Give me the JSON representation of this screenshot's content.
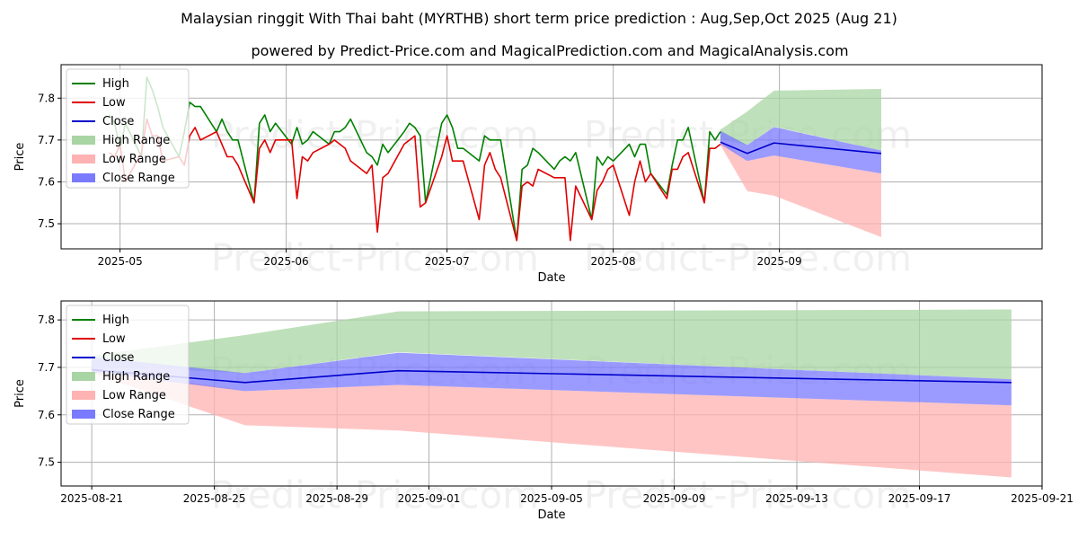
{
  "title": "Malaysian ringgit With Thai baht (MYRTHB) short term price prediction : Aug,Sep,Oct 2025 (Aug 21)",
  "subtitle": "powered by Predict-Price.com and MagicalPrediction.com and MagicalAnalysis.com",
  "watermark": "Predict-Price.com",
  "colors": {
    "high": "#008000",
    "low": "#e00000",
    "close": "#0000cc",
    "high_range": "#a8d5a3",
    "low_range": "#ffb2b2",
    "close_range": "#7a7aff"
  },
  "chart_data": [
    {
      "type": "line",
      "xlabel": "Date",
      "ylabel": "Price",
      "xlim": [
        "2025-04-20",
        "2025-10-20"
      ],
      "ylim": [
        7.44,
        7.88
      ],
      "yticks": [
        7.5,
        7.6,
        7.7,
        7.8
      ],
      "xticks": [
        {
          "date": "2025-05-01",
          "label": "2025-05"
        },
        {
          "date": "2025-06-01",
          "label": "2025-06"
        },
        {
          "date": "2025-07-01",
          "label": "2025-07"
        },
        {
          "date": "2025-08-01",
          "label": "2025-08"
        },
        {
          "date": "2025-09-01",
          "label": "2025-09"
        }
      ],
      "legend": [
        "High",
        "Low",
        "Close",
        "High Range",
        "Low Range",
        "Close Range"
      ],
      "legend_position": "top-left",
      "high": {
        "dates": [
          "2025-04-29",
          "2025-04-30",
          "2025-05-01",
          "2025-05-02",
          "2025-05-05",
          "2025-05-06",
          "2025-05-07",
          "2025-05-08",
          "2025-05-09",
          "2025-05-12",
          "2025-05-13",
          "2025-05-14",
          "2025-05-15",
          "2025-05-16",
          "2025-05-19",
          "2025-05-20",
          "2025-05-21",
          "2025-05-22",
          "2025-05-23",
          "2025-05-26",
          "2025-05-27",
          "2025-05-28",
          "2025-05-29",
          "2025-05-30",
          "2025-06-02",
          "2025-06-03",
          "2025-06-04",
          "2025-06-05",
          "2025-06-06",
          "2025-06-09",
          "2025-06-10",
          "2025-06-11",
          "2025-06-12",
          "2025-06-13",
          "2025-06-16",
          "2025-06-17",
          "2025-06-18",
          "2025-06-19",
          "2025-06-20",
          "2025-06-23",
          "2025-06-24",
          "2025-06-25",
          "2025-06-26",
          "2025-06-27",
          "2025-06-30",
          "2025-07-01",
          "2025-07-02",
          "2025-07-03",
          "2025-07-04",
          "2025-07-07",
          "2025-07-08",
          "2025-07-09",
          "2025-07-10",
          "2025-07-11",
          "2025-07-14",
          "2025-07-15",
          "2025-07-16",
          "2025-07-17",
          "2025-07-18",
          "2025-07-21",
          "2025-07-22",
          "2025-07-23",
          "2025-07-24",
          "2025-07-25",
          "2025-07-28",
          "2025-07-29",
          "2025-07-30",
          "2025-07-31",
          "2025-08-01",
          "2025-08-04",
          "2025-08-05",
          "2025-08-06",
          "2025-08-07",
          "2025-08-08",
          "2025-08-11",
          "2025-08-12",
          "2025-08-13",
          "2025-08-14",
          "2025-08-15",
          "2025-08-18",
          "2025-08-19",
          "2025-08-20",
          "2025-08-21"
        ],
        "values": [
          7.76,
          7.74,
          7.68,
          7.74,
          7.66,
          7.85,
          7.82,
          7.78,
          7.73,
          7.66,
          7.72,
          7.79,
          7.78,
          7.78,
          7.72,
          7.75,
          7.72,
          7.7,
          7.7,
          7.55,
          7.74,
          7.76,
          7.72,
          7.74,
          7.69,
          7.73,
          7.69,
          7.7,
          7.72,
          7.69,
          7.72,
          7.72,
          7.73,
          7.75,
          7.67,
          7.66,
          7.64,
          7.69,
          7.67,
          7.72,
          7.74,
          7.73,
          7.71,
          7.55,
          7.74,
          7.76,
          7.73,
          7.68,
          7.68,
          7.65,
          7.71,
          7.7,
          7.7,
          7.7,
          7.46,
          7.63,
          7.64,
          7.68,
          7.67,
          7.63,
          7.65,
          7.66,
          7.65,
          7.67,
          7.51,
          7.66,
          7.64,
          7.66,
          7.65,
          7.69,
          7.66,
          7.69,
          7.69,
          7.62,
          7.57,
          7.64,
          7.7,
          7.7,
          7.73,
          7.55,
          7.72,
          7.7,
          7.72
        ]
      },
      "low": {
        "dates": [
          "2025-04-29",
          "2025-04-30",
          "2025-05-01",
          "2025-05-02",
          "2025-05-05",
          "2025-05-06",
          "2025-05-07",
          "2025-05-08",
          "2025-05-09",
          "2025-05-12",
          "2025-05-13",
          "2025-05-14",
          "2025-05-15",
          "2025-05-16",
          "2025-05-19",
          "2025-05-20",
          "2025-05-21",
          "2025-05-22",
          "2025-05-23",
          "2025-05-26",
          "2025-05-27",
          "2025-05-28",
          "2025-05-29",
          "2025-05-30",
          "2025-06-02",
          "2025-06-03",
          "2025-06-04",
          "2025-06-05",
          "2025-06-06",
          "2025-06-09",
          "2025-06-10",
          "2025-06-11",
          "2025-06-12",
          "2025-06-13",
          "2025-06-16",
          "2025-06-17",
          "2025-06-18",
          "2025-06-19",
          "2025-06-20",
          "2025-06-23",
          "2025-06-24",
          "2025-06-25",
          "2025-06-26",
          "2025-06-27",
          "2025-06-30",
          "2025-07-01",
          "2025-07-02",
          "2025-07-03",
          "2025-07-04",
          "2025-07-07",
          "2025-07-08",
          "2025-07-09",
          "2025-07-10",
          "2025-07-11",
          "2025-07-14",
          "2025-07-15",
          "2025-07-16",
          "2025-07-17",
          "2025-07-18",
          "2025-07-21",
          "2025-07-22",
          "2025-07-23",
          "2025-07-24",
          "2025-07-25",
          "2025-07-28",
          "2025-07-29",
          "2025-07-30",
          "2025-07-31",
          "2025-08-01",
          "2025-08-04",
          "2025-08-05",
          "2025-08-06",
          "2025-08-07",
          "2025-08-08",
          "2025-08-11",
          "2025-08-12",
          "2025-08-13",
          "2025-08-14",
          "2025-08-15",
          "2025-08-18",
          "2025-08-19",
          "2025-08-20",
          "2025-08-21"
        ],
        "values": [
          7.67,
          7.66,
          7.69,
          7.6,
          7.67,
          7.75,
          7.71,
          7.71,
          7.65,
          7.66,
          7.64,
          7.71,
          7.73,
          7.7,
          7.72,
          7.69,
          7.66,
          7.66,
          7.64,
          7.55,
          7.68,
          7.7,
          7.67,
          7.7,
          7.7,
          7.56,
          7.66,
          7.65,
          7.67,
          7.69,
          7.7,
          7.69,
          7.68,
          7.65,
          7.62,
          7.64,
          7.48,
          7.61,
          7.62,
          7.69,
          7.7,
          7.71,
          7.54,
          7.55,
          7.66,
          7.71,
          7.65,
          7.65,
          7.65,
          7.51,
          7.64,
          7.67,
          7.63,
          7.61,
          7.46,
          7.59,
          7.6,
          7.59,
          7.63,
          7.61,
          7.61,
          7.61,
          7.46,
          7.59,
          7.51,
          7.58,
          7.6,
          7.63,
          7.64,
          7.52,
          7.6,
          7.65,
          7.6,
          7.62,
          7.56,
          7.63,
          7.63,
          7.66,
          7.67,
          7.55,
          7.68,
          7.68,
          7.69
        ]
      },
      "close": {
        "dates": [
          "2025-08-21",
          "2025-08-26",
          "2025-08-31",
          "2025-09-20"
        ],
        "values": [
          7.695,
          7.668,
          7.693,
          7.668
        ]
      },
      "high_range": {
        "dates": [
          "2025-08-21",
          "2025-08-26",
          "2025-08-31",
          "2025-09-20"
        ],
        "upper": [
          7.725,
          7.768,
          7.818,
          7.822
        ],
        "lower": [
          7.703,
          7.688,
          7.732,
          7.675
        ]
      },
      "low_range": {
        "dates": [
          "2025-08-21",
          "2025-08-26",
          "2025-08-31",
          "2025-09-20"
        ],
        "upper": [
          7.7,
          7.65,
          7.663,
          7.62
        ],
        "lower": [
          7.688,
          7.578,
          7.567,
          7.468
        ]
      },
      "close_range": {
        "dates": [
          "2025-08-21",
          "2025-08-26",
          "2025-08-31",
          "2025-09-20"
        ],
        "upper": [
          7.722,
          7.688,
          7.731,
          7.675
        ],
        "lower": [
          7.69,
          7.65,
          7.663,
          7.62
        ]
      }
    },
    {
      "type": "line",
      "xlabel": "Date",
      "ylabel": "Price",
      "xlim": [
        "2025-08-20",
        "2025-09-21"
      ],
      "ylim": [
        7.45,
        7.84
      ],
      "yticks": [
        7.5,
        7.6,
        7.7,
        7.8
      ],
      "xticks": [
        {
          "date": "2025-08-21",
          "label": "2025-08-21"
        },
        {
          "date": "2025-08-25",
          "label": "2025-08-25"
        },
        {
          "date": "2025-08-29",
          "label": "2025-08-29"
        },
        {
          "date": "2025-09-01",
          "label": "2025-09-01"
        },
        {
          "date": "2025-09-05",
          "label": "2025-09-05"
        },
        {
          "date": "2025-09-09",
          "label": "2025-09-09"
        },
        {
          "date": "2025-09-13",
          "label": "2025-09-13"
        },
        {
          "date": "2025-09-17",
          "label": "2025-09-17"
        },
        {
          "date": "2025-09-21",
          "label": "2025-09-21"
        }
      ],
      "legend": [
        "High",
        "Low",
        "Close",
        "High Range",
        "Low Range",
        "Close Range"
      ],
      "legend_position": "top-left",
      "close": {
        "dates": [
          "2025-08-21",
          "2025-08-26",
          "2025-08-31",
          "2025-09-20"
        ],
        "values": [
          7.695,
          7.668,
          7.693,
          7.668
        ]
      },
      "high_range": {
        "dates": [
          "2025-08-21",
          "2025-08-26",
          "2025-08-31",
          "2025-09-20"
        ],
        "upper": [
          7.725,
          7.768,
          7.818,
          7.822
        ],
        "lower": [
          7.703,
          7.688,
          7.732,
          7.675
        ]
      },
      "low_range": {
        "dates": [
          "2025-08-21",
          "2025-08-26",
          "2025-08-31",
          "2025-09-20"
        ],
        "upper": [
          7.7,
          7.65,
          7.663,
          7.62
        ],
        "lower": [
          7.688,
          7.578,
          7.567,
          7.468
        ]
      },
      "close_range": {
        "dates": [
          "2025-08-21",
          "2025-08-26",
          "2025-08-31",
          "2025-09-20"
        ],
        "upper": [
          7.722,
          7.688,
          7.731,
          7.675
        ],
        "lower": [
          7.69,
          7.65,
          7.663,
          7.62
        ]
      }
    }
  ]
}
